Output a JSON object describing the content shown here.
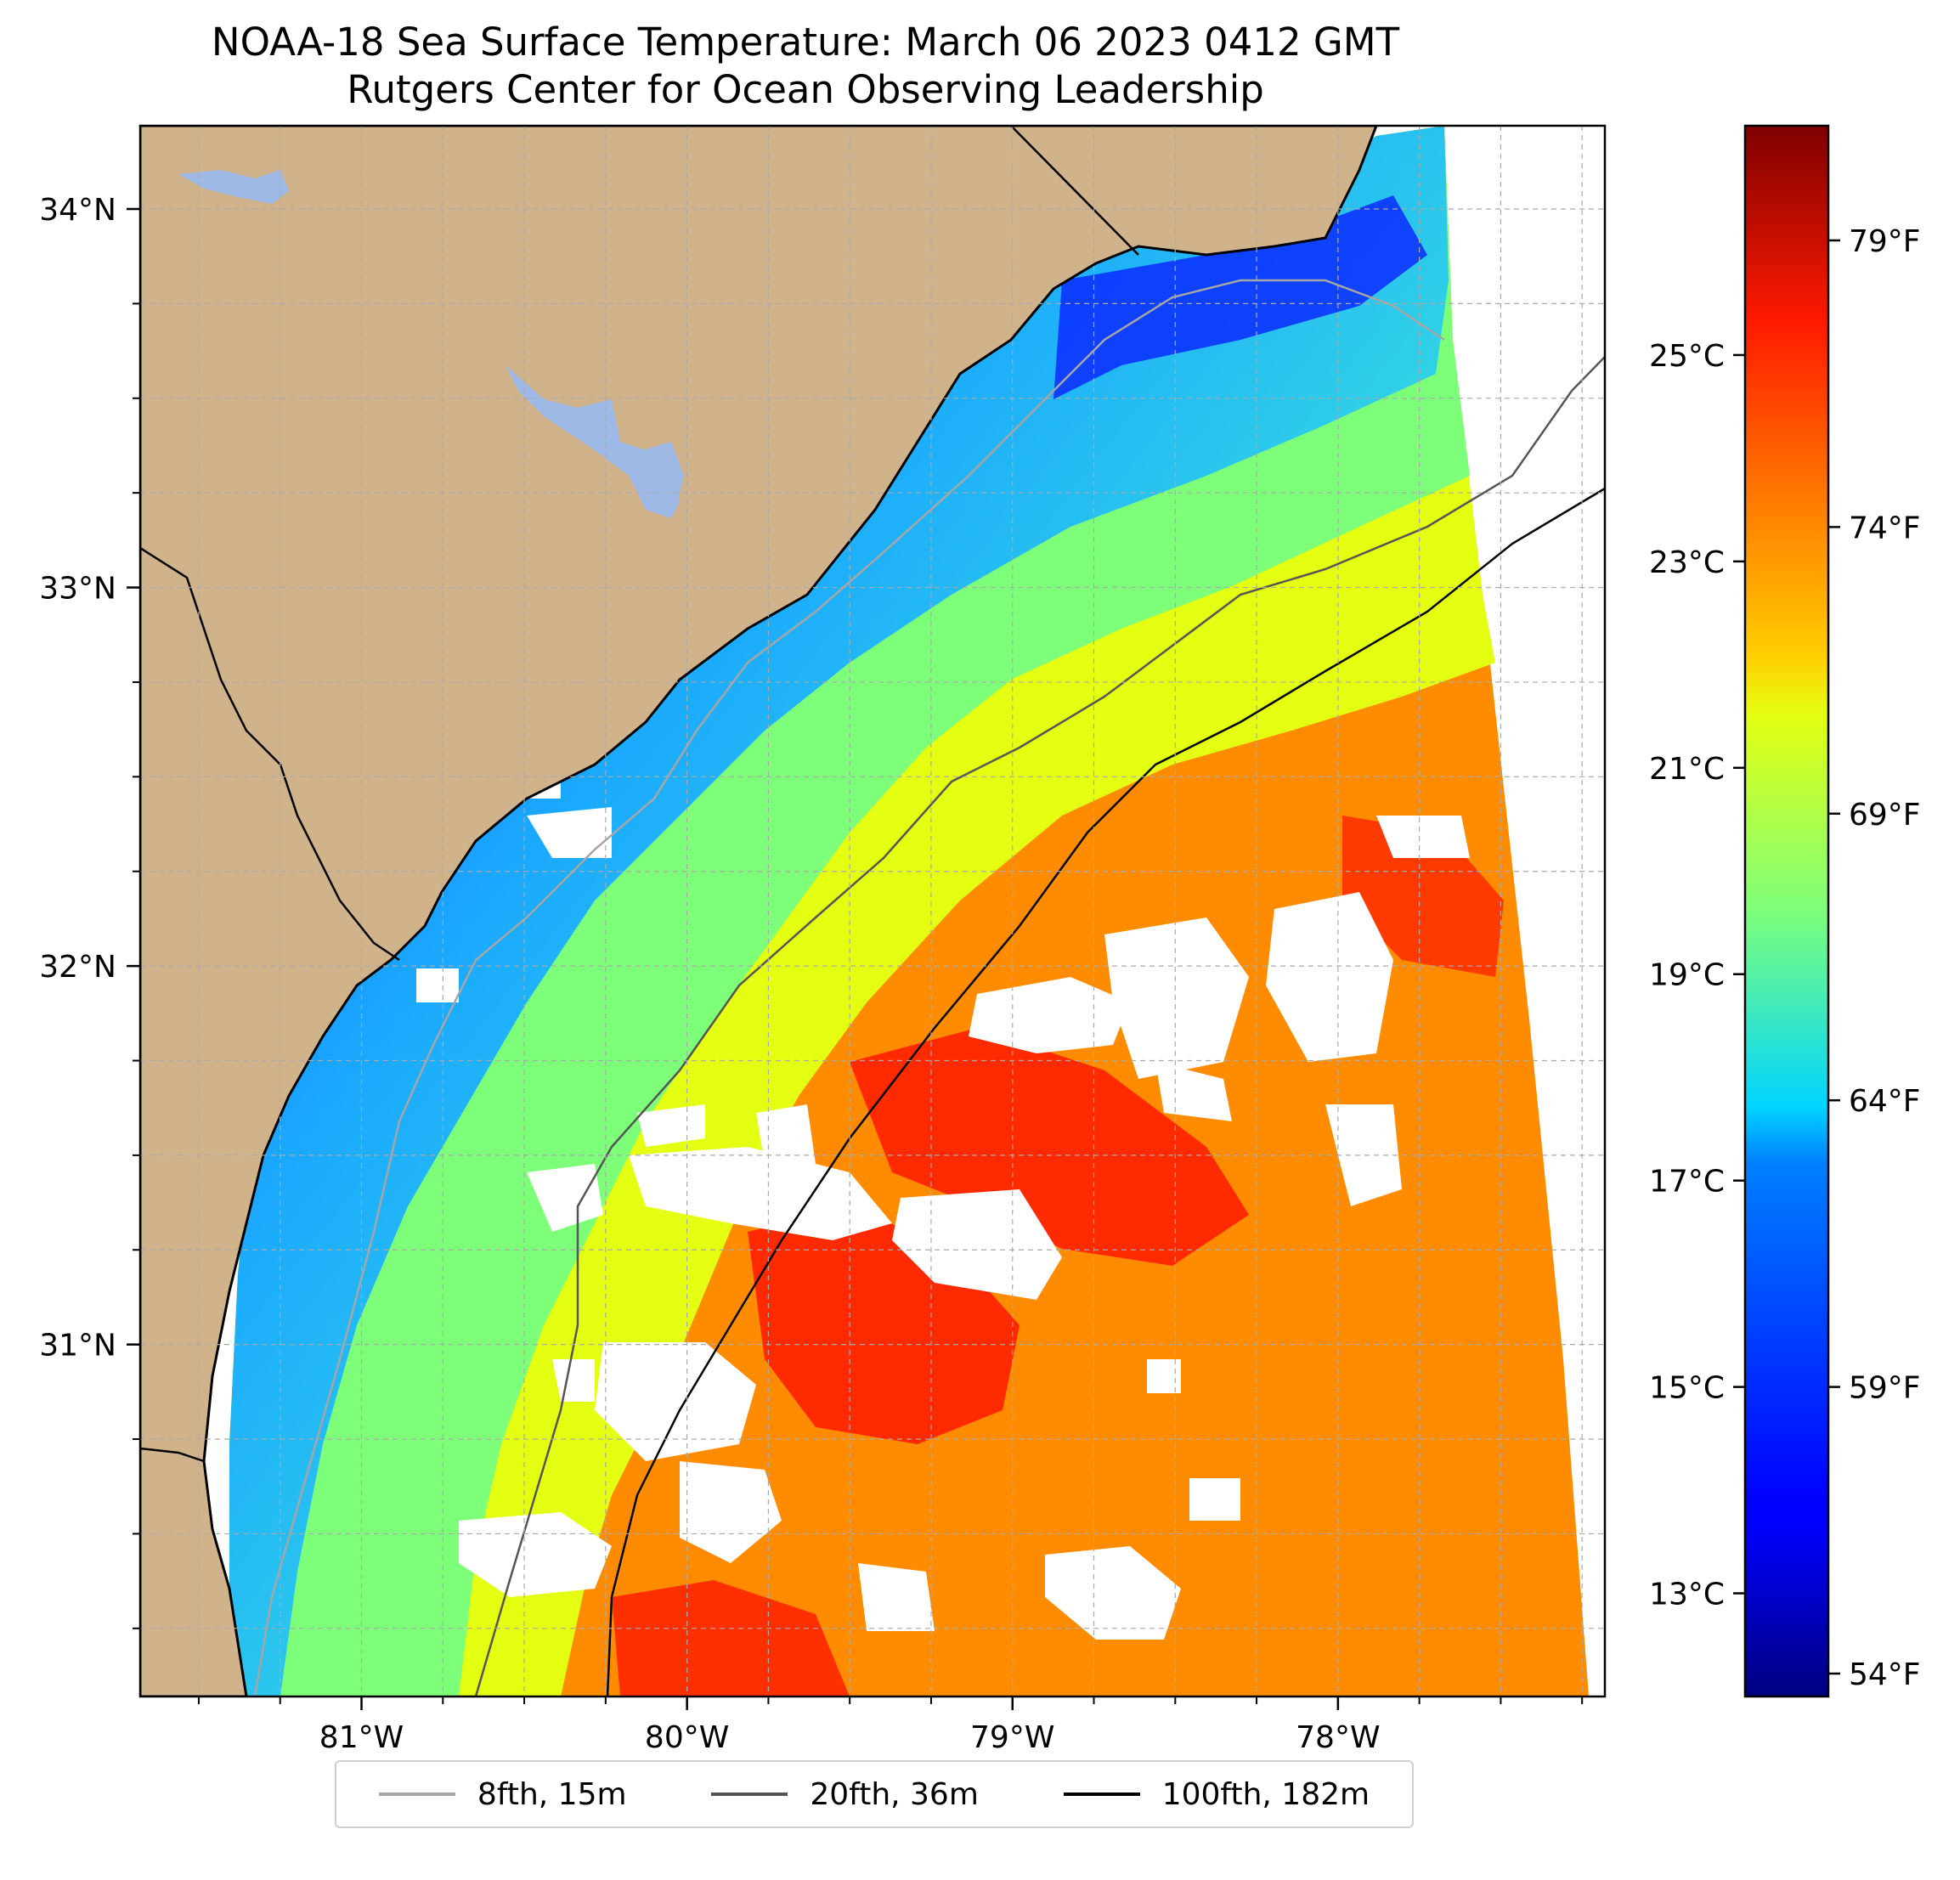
{
  "title": {
    "line1": "NOAA-18 Sea Surface Temperature: March 06 2023 0412 GMT",
    "line2": "Rutgers Center for Ocean Observing Leadership"
  },
  "map": {
    "lon_range": [
      -81.68,
      -77.18
    ],
    "lat_range": [
      30.07,
      34.22
    ],
    "grid": true,
    "longitude_ticks": [
      {
        "value": -81,
        "label": "81°W"
      },
      {
        "value": -80,
        "label": "80°W"
      },
      {
        "value": -79,
        "label": "79°W"
      },
      {
        "value": -78,
        "label": "78°W"
      }
    ],
    "latitude_ticks": [
      {
        "value": 31,
        "label": "31°N"
      },
      {
        "value": 32,
        "label": "32°N"
      },
      {
        "value": 33,
        "label": "33°N"
      },
      {
        "value": 34,
        "label": "34°N"
      }
    ],
    "colors": {
      "land": "#d1b38b",
      "lakes": "#9fb9e6",
      "coastline": "#000000",
      "cloud_mask": "#ffffff",
      "grid": "#aaaaaa"
    }
  },
  "colorbar": {
    "colormap": "jet",
    "range_f": [
      53.6,
      81.0
    ],
    "celsius_ticks": [
      {
        "value": 13,
        "label": "13°C"
      },
      {
        "value": 15,
        "label": "15°C"
      },
      {
        "value": 17,
        "label": "17°C"
      },
      {
        "value": 19,
        "label": "19°C"
      },
      {
        "value": 21,
        "label": "21°C"
      },
      {
        "value": 23,
        "label": "23°C"
      },
      {
        "value": 25,
        "label": "25°C"
      }
    ],
    "fahrenheit_ticks": [
      {
        "value": 54,
        "label": "54°F"
      },
      {
        "value": 59,
        "label": "59°F"
      },
      {
        "value": 64,
        "label": "64°F"
      },
      {
        "value": 69,
        "label": "69°F"
      },
      {
        "value": 74,
        "label": "74°F"
      },
      {
        "value": 79,
        "label": "79°F"
      }
    ]
  },
  "legend": {
    "placement": "bottom-center",
    "items": [
      {
        "label": "8fth, 15m",
        "color": "#a6a6a6"
      },
      {
        "label": "20fth, 36m",
        "color": "#555555"
      },
      {
        "label": "100fth, 182m",
        "color": "#000000"
      }
    ]
  }
}
